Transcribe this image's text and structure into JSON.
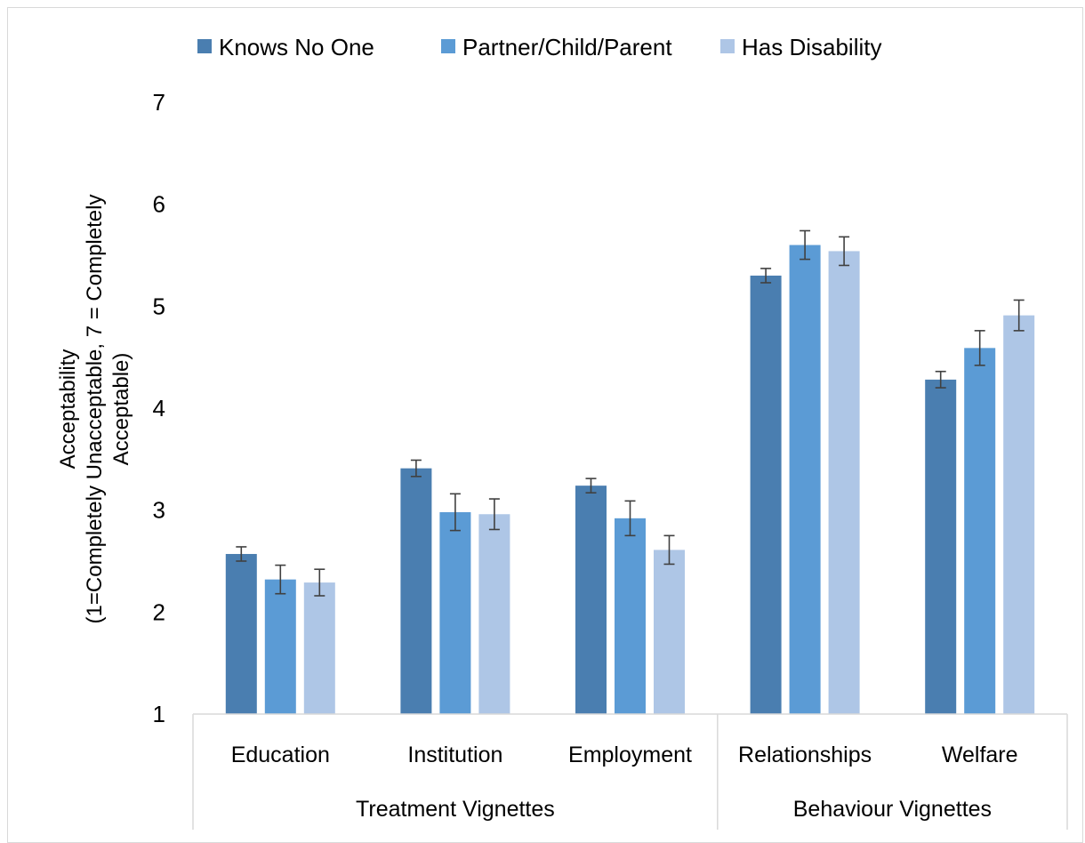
{
  "chart_data": {
    "type": "bar",
    "title": "",
    "ylabel_line1": "Acceptability",
    "ylabel_line2": "(1=Completely Unacceptable, 7 = Completely",
    "ylabel_line3": "Acceptable)",
    "ylim": [
      1,
      7
    ],
    "yticks": [
      1,
      2,
      3,
      4,
      5,
      6,
      7
    ],
    "grid": false,
    "legend_position": "top",
    "categories": [
      "Education",
      "Institution",
      "Employment",
      "Relationships",
      "Welfare"
    ],
    "groups": [
      {
        "label": "Treatment Vignettes",
        "categories": [
          "Education",
          "Institution",
          "Employment"
        ]
      },
      {
        "label": "Behaviour Vignettes",
        "categories": [
          "Relationships",
          "Welfare"
        ]
      }
    ],
    "series": [
      {
        "name": "Knows No One",
        "color": "#4a7eb0",
        "values": [
          2.57,
          3.41,
          3.24,
          5.3,
          4.28
        ],
        "errors": [
          0.07,
          0.08,
          0.07,
          0.07,
          0.08
        ]
      },
      {
        "name": "Partner/Child/Parent",
        "color": "#5b9bd5",
        "values": [
          2.32,
          2.98,
          2.92,
          5.6,
          4.59
        ],
        "errors": [
          0.14,
          0.18,
          0.17,
          0.14,
          0.17
        ]
      },
      {
        "name": "Has Disability",
        "color": "#aec6e6",
        "values": [
          2.29,
          2.96,
          2.61,
          5.54,
          4.91
        ],
        "errors": [
          0.13,
          0.15,
          0.14,
          0.14,
          0.15
        ]
      }
    ]
  }
}
